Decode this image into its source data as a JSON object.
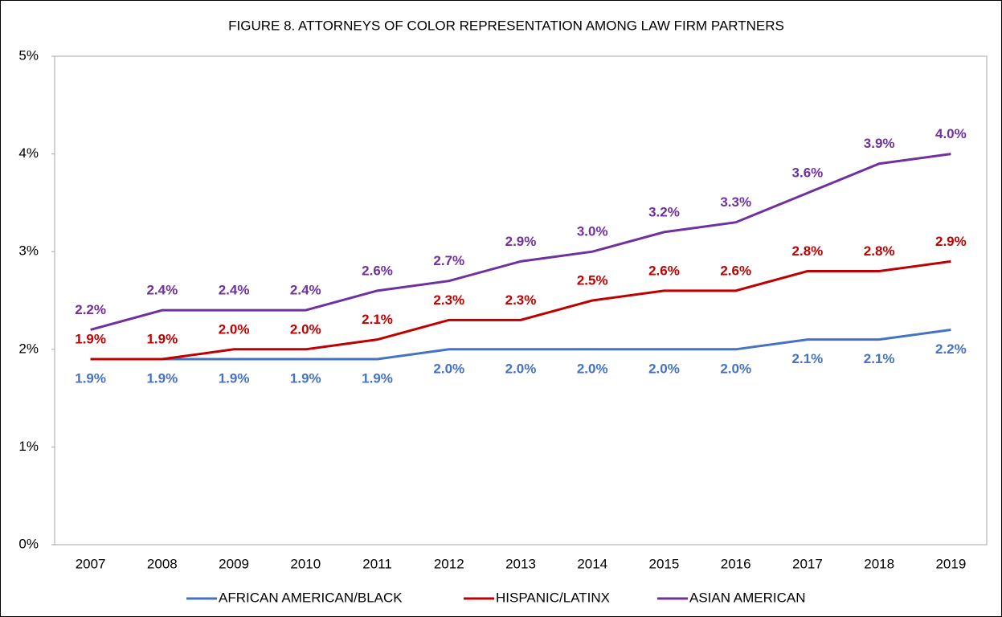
{
  "chart_data": {
    "type": "line",
    "title": "FIGURE 8. ATTORNEYS OF COLOR REPRESENTATION AMONG LAW FIRM PARTNERS",
    "categories": [
      "2007",
      "2008",
      "2009",
      "2010",
      "2011",
      "2012",
      "2013",
      "2014",
      "2015",
      "2016",
      "2017",
      "2018",
      "2019"
    ],
    "series": [
      {
        "name": "AFRICAN AMERICAN/BLACK",
        "color": "#4472c4",
        "values": [
          1.9,
          1.9,
          1.9,
          1.9,
          1.9,
          2.0,
          2.0,
          2.0,
          2.0,
          2.0,
          2.1,
          2.1,
          2.2
        ],
        "value_labels": [
          "1.9%",
          "1.9%",
          "1.9%",
          "1.9%",
          "1.9%",
          "2.0%",
          "2.0%",
          "2.0%",
          "2.0%",
          "2.0%",
          "2.1%",
          "2.1%",
          "2.2%"
        ]
      },
      {
        "name": "HISPANIC/LATINX",
        "color": "#c00000",
        "values": [
          1.9,
          1.9,
          2.0,
          2.0,
          2.1,
          2.3,
          2.3,
          2.5,
          2.6,
          2.6,
          2.8,
          2.8,
          2.9
        ],
        "value_labels": [
          "1.9%",
          "1.9%",
          "2.0%",
          "2.0%",
          "2.1%",
          "2.3%",
          "2.3%",
          "2.5%",
          "2.6%",
          "2.6%",
          "2.8%",
          "2.8%",
          "2.9%"
        ]
      },
      {
        "name": "ASIAN AMERICAN",
        "color": "#7030a0",
        "values": [
          2.2,
          2.4,
          2.4,
          2.4,
          2.6,
          2.7,
          2.9,
          3.0,
          3.2,
          3.3,
          3.6,
          3.9,
          4.0
        ],
        "value_labels": [
          "2.2%",
          "2.4%",
          "2.4%",
          "2.4%",
          "2.6%",
          "2.7%",
          "2.9%",
          "3.0%",
          "3.2%",
          "3.3%",
          "3.6%",
          "3.9%",
          "4.0%"
        ]
      }
    ],
    "ylim": [
      0,
      5
    ],
    "yticks": [
      {
        "value": 0,
        "label": "0%"
      },
      {
        "value": 1,
        "label": "1%"
      },
      {
        "value": 2,
        "label": "2%"
      },
      {
        "value": 3,
        "label": "3%"
      },
      {
        "value": 4,
        "label": "4%"
      },
      {
        "value": 5,
        "label": "5%"
      }
    ],
    "grid": false,
    "legend": "bottom"
  }
}
